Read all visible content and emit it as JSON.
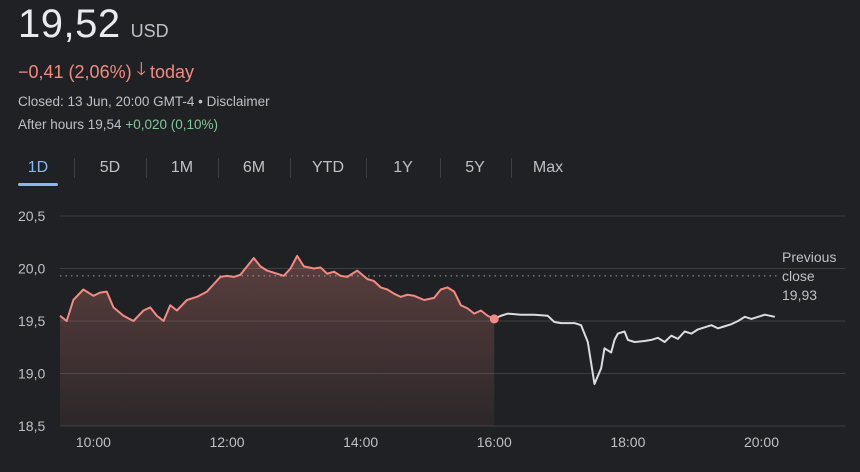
{
  "header": {
    "price": "19,52",
    "currency": "USD",
    "change": "−0,41 (2,06%)",
    "change_arrow": "🡓",
    "change_period": "today",
    "closed_text": "Closed: 13 Jun, 20:00 GMT-4",
    "separator": "•",
    "disclaimer": "Disclaimer",
    "after_hours_label": "After hours 19,54",
    "after_hours_change": "+0,020 (0,10%)"
  },
  "tabs": [
    {
      "label": "1D",
      "active": true
    },
    {
      "label": "5D",
      "active": false
    },
    {
      "label": "1M",
      "active": false
    },
    {
      "label": "6M",
      "active": false
    },
    {
      "label": "YTD",
      "active": false
    },
    {
      "label": "1Y",
      "active": false
    },
    {
      "label": "5Y",
      "active": false
    },
    {
      "label": "Max",
      "active": false
    }
  ],
  "colors": {
    "down": "#f28b82",
    "after_hours_line": "#dadce0",
    "positive": "#81c995",
    "accent": "#8ab4f8",
    "grid": "#3c4043"
  },
  "chart_data": {
    "type": "line",
    "ylim": [
      18.5,
      20.5
    ],
    "xlim": [
      9.5,
      21.25
    ],
    "y_ticks": [
      {
        "value": 20.5,
        "label": "20,5"
      },
      {
        "value": 20.0,
        "label": "20,0"
      },
      {
        "value": 19.5,
        "label": "19,5"
      },
      {
        "value": 19.0,
        "label": "19,0"
      },
      {
        "value": 18.5,
        "label": "18,5"
      }
    ],
    "x_ticks": [
      {
        "value": 10,
        "label": "10:00"
      },
      {
        "value": 12,
        "label": "12:00"
      },
      {
        "value": 14,
        "label": "14:00"
      },
      {
        "value": 16,
        "label": "16:00"
      },
      {
        "value": 18,
        "label": "18:00"
      },
      {
        "value": 20,
        "label": "20:00"
      }
    ],
    "previous_close": {
      "value": 19.93,
      "label_line1": "Previous",
      "label_line2": "close",
      "label_value": "19,93"
    },
    "series": [
      {
        "segment": "regular",
        "points": [
          [
            9.5,
            19.55
          ],
          [
            9.6,
            19.5
          ],
          [
            9.7,
            19.7
          ],
          [
            9.85,
            19.8
          ],
          [
            10.0,
            19.74
          ],
          [
            10.1,
            19.77
          ],
          [
            10.2,
            19.78
          ],
          [
            10.3,
            19.63
          ],
          [
            10.45,
            19.55
          ],
          [
            10.6,
            19.5
          ],
          [
            10.75,
            19.6
          ],
          [
            10.85,
            19.63
          ],
          [
            10.95,
            19.55
          ],
          [
            11.05,
            19.5
          ],
          [
            11.15,
            19.65
          ],
          [
            11.25,
            19.6
          ],
          [
            11.4,
            19.7
          ],
          [
            11.55,
            19.73
          ],
          [
            11.7,
            19.78
          ],
          [
            11.8,
            19.85
          ],
          [
            11.9,
            19.92
          ],
          [
            12.0,
            19.93
          ],
          [
            12.1,
            19.92
          ],
          [
            12.2,
            19.94
          ],
          [
            12.3,
            20.02
          ],
          [
            12.4,
            20.1
          ],
          [
            12.5,
            20.02
          ],
          [
            12.6,
            19.98
          ],
          [
            12.7,
            19.96
          ],
          [
            12.85,
            19.93
          ],
          [
            12.95,
            20.0
          ],
          [
            13.05,
            20.12
          ],
          [
            13.15,
            20.02
          ],
          [
            13.3,
            20.0
          ],
          [
            13.4,
            20.01
          ],
          [
            13.5,
            19.95
          ],
          [
            13.6,
            19.97
          ],
          [
            13.7,
            19.93
          ],
          [
            13.8,
            19.92
          ],
          [
            13.95,
            19.98
          ],
          [
            14.1,
            19.9
          ],
          [
            14.2,
            19.88
          ],
          [
            14.3,
            19.82
          ],
          [
            14.4,
            19.8
          ],
          [
            14.5,
            19.76
          ],
          [
            14.6,
            19.73
          ],
          [
            14.7,
            19.75
          ],
          [
            14.8,
            19.74
          ],
          [
            14.95,
            19.7
          ],
          [
            15.1,
            19.72
          ],
          [
            15.2,
            19.8
          ],
          [
            15.3,
            19.82
          ],
          [
            15.4,
            19.78
          ],
          [
            15.5,
            19.65
          ],
          [
            15.6,
            19.62
          ],
          [
            15.7,
            19.57
          ],
          [
            15.8,
            19.6
          ],
          [
            15.9,
            19.55
          ],
          [
            16.0,
            19.52
          ]
        ]
      },
      {
        "segment": "after_hours",
        "points": [
          [
            16.0,
            19.52
          ],
          [
            16.1,
            19.55
          ],
          [
            16.2,
            19.57
          ],
          [
            16.4,
            19.56
          ],
          [
            16.6,
            19.56
          ],
          [
            16.8,
            19.55
          ],
          [
            16.9,
            19.49
          ],
          [
            17.0,
            19.48
          ],
          [
            17.2,
            19.48
          ],
          [
            17.3,
            19.46
          ],
          [
            17.4,
            19.3
          ],
          [
            17.5,
            18.9
          ],
          [
            17.6,
            19.05
          ],
          [
            17.65,
            19.24
          ],
          [
            17.75,
            19.2
          ],
          [
            17.8,
            19.32
          ],
          [
            17.85,
            19.38
          ],
          [
            17.95,
            19.4
          ],
          [
            18.0,
            19.32
          ],
          [
            18.1,
            19.3
          ],
          [
            18.25,
            19.31
          ],
          [
            18.35,
            19.32
          ],
          [
            18.45,
            19.34
          ],
          [
            18.55,
            19.3
          ],
          [
            18.65,
            19.36
          ],
          [
            18.75,
            19.33
          ],
          [
            18.85,
            19.4
          ],
          [
            18.95,
            19.38
          ],
          [
            19.05,
            19.42
          ],
          [
            19.15,
            19.44
          ],
          [
            19.25,
            19.46
          ],
          [
            19.35,
            19.43
          ],
          [
            19.45,
            19.45
          ],
          [
            19.55,
            19.47
          ],
          [
            19.65,
            19.5
          ],
          [
            19.75,
            19.54
          ],
          [
            19.85,
            19.52
          ],
          [
            19.95,
            19.54
          ],
          [
            20.05,
            19.56
          ],
          [
            20.2,
            19.54
          ]
        ]
      }
    ]
  }
}
